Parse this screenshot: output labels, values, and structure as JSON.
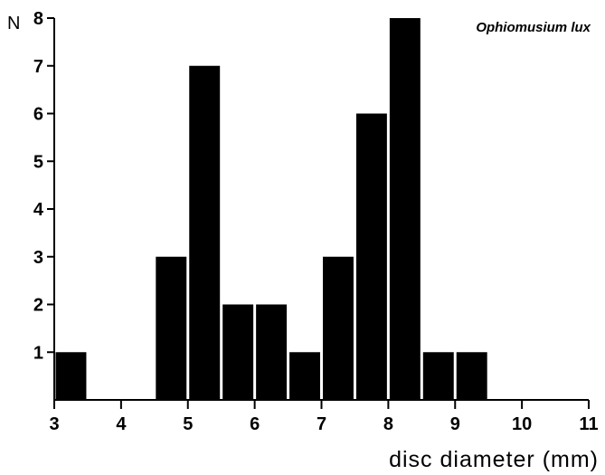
{
  "chart_data": {
    "type": "bar",
    "title": "Ophiomusium lux",
    "xlabel": "disc diameter (mm)",
    "ylabel": "N",
    "xlim": [
      3,
      11
    ],
    "ylim": [
      0,
      8
    ],
    "x_ticks": [
      "3",
      "4",
      "5",
      "6",
      "7",
      "8",
      "9",
      "10",
      "11"
    ],
    "y_ticks": [
      "1",
      "2",
      "3",
      "4",
      "5",
      "6",
      "7",
      "8"
    ],
    "bin_width": 0.5,
    "bins": [
      {
        "start": 3.0,
        "value": 1
      },
      {
        "start": 3.5,
        "value": 0
      },
      {
        "start": 4.0,
        "value": 0
      },
      {
        "start": 4.5,
        "value": 3
      },
      {
        "start": 5.0,
        "value": 7
      },
      {
        "start": 5.5,
        "value": 2
      },
      {
        "start": 6.0,
        "value": 2
      },
      {
        "start": 6.5,
        "value": 1
      },
      {
        "start": 7.0,
        "value": 3
      },
      {
        "start": 7.5,
        "value": 6
      },
      {
        "start": 8.0,
        "value": 8
      },
      {
        "start": 8.5,
        "value": 1
      },
      {
        "start": 9.0,
        "value": 1
      }
    ],
    "bar_color": "#000000",
    "grid": false
  }
}
